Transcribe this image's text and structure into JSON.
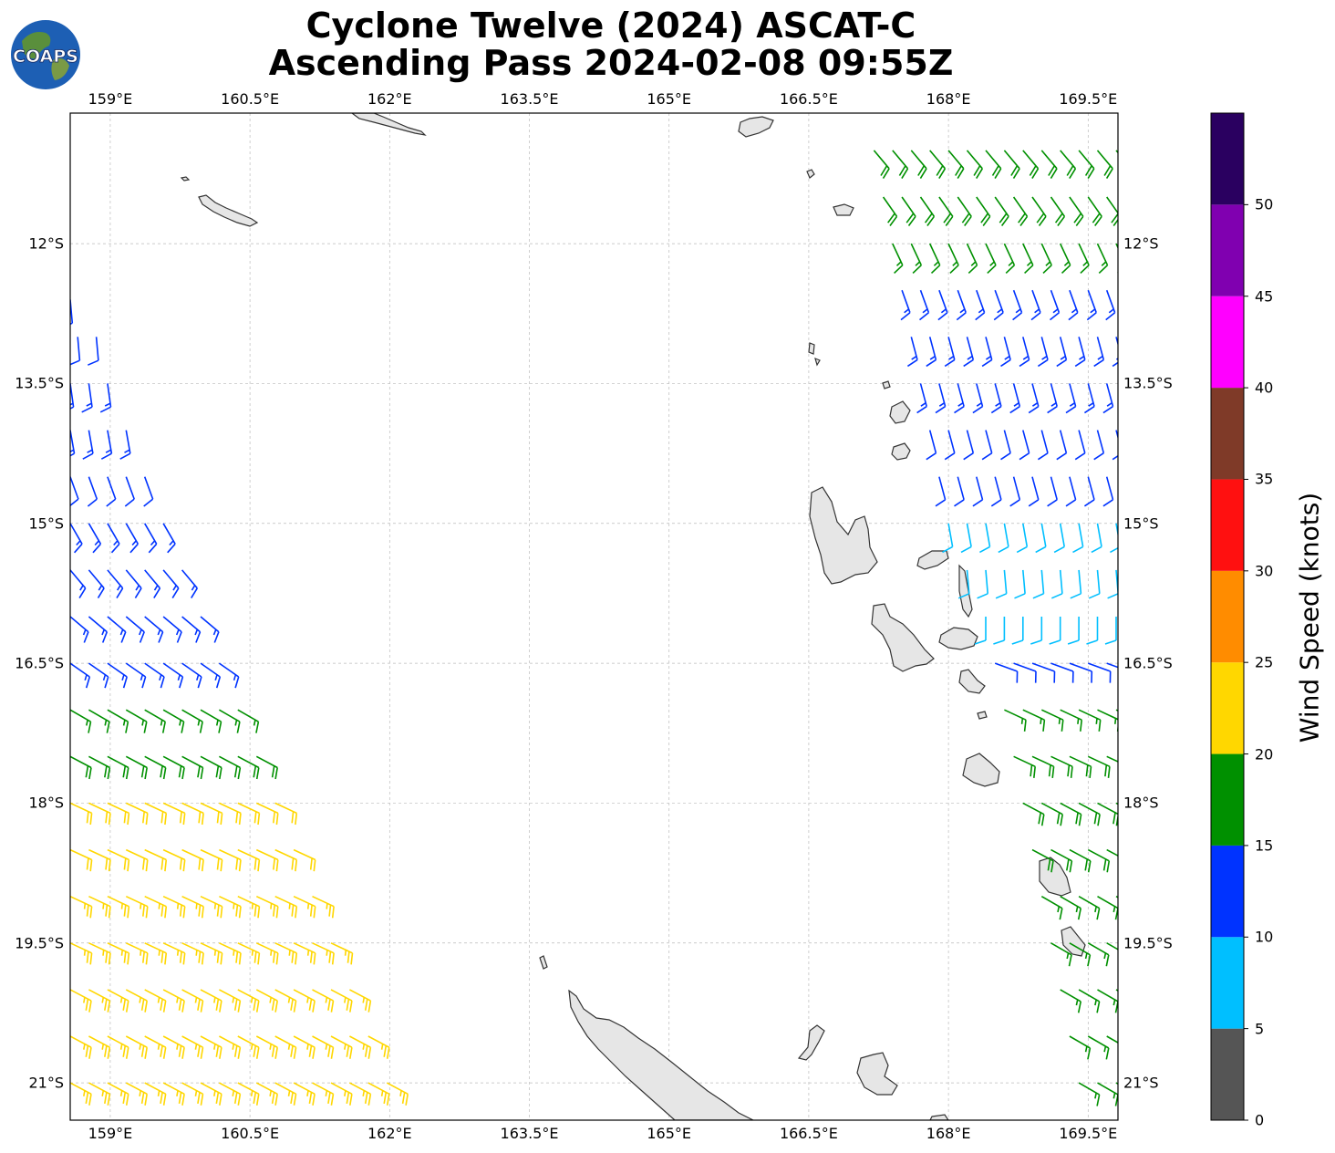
{
  "title": {
    "line1": "Cyclone Twelve (2024) ASCAT-C",
    "line2": "Ascending Pass 2024-02-08 09:55Z"
  },
  "logo": {
    "text": "COAPS",
    "icon": "globe-icon"
  },
  "axes": {
    "lon_ticks": [
      "159°E",
      "160.5°E",
      "162°E",
      "163.5°E",
      "165°E",
      "166.5°E",
      "168°E",
      "169.5°E"
    ],
    "lat_ticks": [
      "12°S",
      "13.5°S",
      "15°S",
      "16.5°S",
      "18°S",
      "19.5°S",
      "21°S"
    ],
    "lon_range": [
      158.57,
      169.82
    ],
    "lat_range": [
      -21.4,
      -10.6
    ],
    "grid": true
  },
  "colorbar": {
    "label": "Wind Speed (knots)",
    "ticks": [
      "0",
      "5",
      "10",
      "15",
      "20",
      "25",
      "30",
      "35",
      "40",
      "45",
      "50"
    ],
    "bins": [
      {
        "range": [
          0,
          5
        ],
        "color": "#555555"
      },
      {
        "range": [
          5,
          10
        ],
        "color": "#00bfff"
      },
      {
        "range": [
          10,
          15
        ],
        "color": "#0033ff"
      },
      {
        "range": [
          15,
          20
        ],
        "color": "#009000"
      },
      {
        "range": [
          20,
          25
        ],
        "color": "#ffd700"
      },
      {
        "range": [
          25,
          30
        ],
        "color": "#ff8c00"
      },
      {
        "range": [
          30,
          35
        ],
        "color": "#ff1010"
      },
      {
        "range": [
          35,
          40
        ],
        "color": "#7f3a28"
      },
      {
        "range": [
          40,
          45
        ],
        "color": "#ff00ff"
      },
      {
        "range": [
          45,
          50
        ],
        "color": "#8000b0"
      },
      {
        "range": [
          50,
          55
        ],
        "color": "#2a0060"
      }
    ]
  },
  "land_color": "#e6e6e6",
  "coast_color": "#333333",
  "swaths": [
    {
      "name": "west",
      "rows": [
        {
          "lat": -12.6,
          "lon_start": 158.57,
          "lon_end": 158.62,
          "speed": 12,
          "dir": 175
        },
        {
          "lat": -13.0,
          "lon_start": 158.65,
          "lon_end": 158.85,
          "speed": 12,
          "dir": 175
        },
        {
          "lat": -13.5,
          "lon_start": 158.57,
          "lon_end": 159.0,
          "speed": 13,
          "dir": 172
        },
        {
          "lat": -14.0,
          "lon_start": 158.57,
          "lon_end": 159.2,
          "speed": 13,
          "dir": 170
        },
        {
          "lat": -14.5,
          "lon_start": 158.57,
          "lon_end": 159.4,
          "speed": 12,
          "dir": 160
        },
        {
          "lat": -15.0,
          "lon_start": 158.57,
          "lon_end": 159.6,
          "speed": 13,
          "dir": 150
        },
        {
          "lat": -15.5,
          "lon_start": 158.57,
          "lon_end": 159.8,
          "speed": 14,
          "dir": 140
        },
        {
          "lat": -16.0,
          "lon_start": 158.57,
          "lon_end": 160.1,
          "speed": 14,
          "dir": 130
        },
        {
          "lat": -16.5,
          "lon_start": 158.57,
          "lon_end": 160.3,
          "speed": 14,
          "dir": 125
        },
        {
          "lat": -17.0,
          "lon_start": 158.57,
          "lon_end": 160.5,
          "speed": 16,
          "dir": 120
        },
        {
          "lat": -17.5,
          "lon_start": 158.57,
          "lon_end": 160.7,
          "speed": 19,
          "dir": 118
        },
        {
          "lat": -18.0,
          "lon_start": 158.57,
          "lon_end": 160.9,
          "speed": 22,
          "dir": 115
        },
        {
          "lat": -18.5,
          "lon_start": 158.57,
          "lon_end": 161.0,
          "speed": 22,
          "dir": 115
        },
        {
          "lat": -19.0,
          "lon_start": 158.57,
          "lon_end": 161.2,
          "speed": 23,
          "dir": 115
        },
        {
          "lat": -19.5,
          "lon_start": 158.57,
          "lon_end": 161.4,
          "speed": 23,
          "dir": 115
        },
        {
          "lat": -20.0,
          "lon_start": 158.57,
          "lon_end": 161.6,
          "speed": 23,
          "dir": 118
        },
        {
          "lat": -20.5,
          "lon_start": 158.57,
          "lon_end": 161.8,
          "speed": 23,
          "dir": 118
        },
        {
          "lat": -21.0,
          "lon_start": 158.57,
          "lon_end": 162.0,
          "speed": 23,
          "dir": 118
        }
      ]
    },
    {
      "name": "east",
      "rows": [
        {
          "lat": -11.0,
          "lon_start": 167.2,
          "lon_end": 169.82,
          "speed": 19,
          "dir": 140
        },
        {
          "lat": -11.5,
          "lon_start": 167.3,
          "lon_end": 169.82,
          "speed": 19,
          "dir": 145
        },
        {
          "lat": -12.0,
          "lon_start": 167.4,
          "lon_end": 169.82,
          "speed": 16,
          "dir": 155
        },
        {
          "lat": -12.5,
          "lon_start": 167.5,
          "lon_end": 169.82,
          "speed": 14,
          "dir": 160
        },
        {
          "lat": -13.0,
          "lon_start": 167.6,
          "lon_end": 169.82,
          "speed": 14,
          "dir": 165
        },
        {
          "lat": -13.5,
          "lon_start": 167.7,
          "lon_end": 169.82,
          "speed": 13,
          "dir": 165
        },
        {
          "lat": -14.0,
          "lon_start": 167.8,
          "lon_end": 169.82,
          "speed": 12,
          "dir": 165
        },
        {
          "lat": -14.5,
          "lon_start": 167.9,
          "lon_end": 169.82,
          "speed": 12,
          "dir": 165
        },
        {
          "lat": -15.0,
          "lon_start": 168.0,
          "lon_end": 169.82,
          "speed": 9,
          "dir": 170
        },
        {
          "lat": -15.5,
          "lon_start": 168.2,
          "lon_end": 169.82,
          "speed": 8,
          "dir": 175
        },
        {
          "lat": -16.0,
          "lon_start": 168.4,
          "lon_end": 169.82,
          "speed": 8,
          "dir": 180
        },
        {
          "lat": -16.5,
          "lon_start": 168.5,
          "lon_end": 169.82,
          "speed": 12,
          "dir": 110
        },
        {
          "lat": -17.0,
          "lon_start": 168.6,
          "lon_end": 169.82,
          "speed": 17,
          "dir": 115
        },
        {
          "lat": -17.5,
          "lon_start": 168.7,
          "lon_end": 169.82,
          "speed": 18,
          "dir": 115
        },
        {
          "lat": -18.0,
          "lon_start": 168.8,
          "lon_end": 169.82,
          "speed": 18,
          "dir": 118
        },
        {
          "lat": -18.5,
          "lon_start": 168.9,
          "lon_end": 169.82,
          "speed": 18,
          "dir": 118
        },
        {
          "lat": -19.0,
          "lon_start": 169.0,
          "lon_end": 169.82,
          "speed": 17,
          "dir": 120
        },
        {
          "lat": -19.5,
          "lon_start": 169.1,
          "lon_end": 169.82,
          "speed": 17,
          "dir": 120
        },
        {
          "lat": -20.0,
          "lon_start": 169.2,
          "lon_end": 169.82,
          "speed": 17,
          "dir": 120
        },
        {
          "lat": -20.5,
          "lon_start": 169.3,
          "lon_end": 169.82,
          "speed": 16,
          "dir": 120
        },
        {
          "lat": -21.0,
          "lon_start": 169.4,
          "lon_end": 169.82,
          "speed": 16,
          "dir": 120
        }
      ]
    }
  ]
}
